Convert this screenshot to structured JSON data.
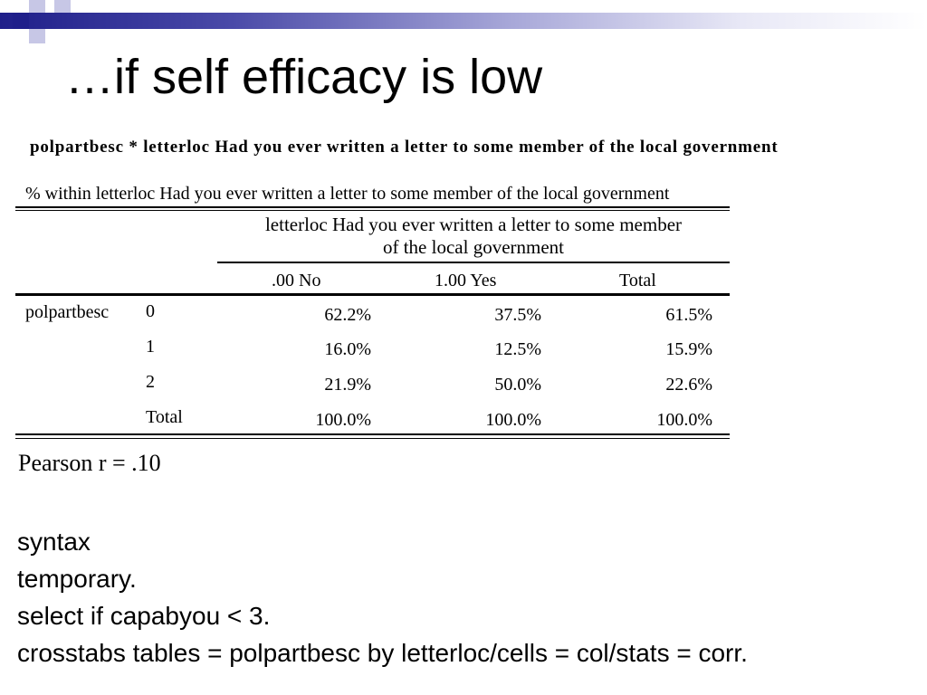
{
  "slide": {
    "title": "…if self efficacy is low"
  },
  "crosstab": {
    "heading": "polpartbesc * letterloc Had you ever written a letter to some member of the local government",
    "subtitle": "% within letterloc Had you ever written a letter to some member of the local government",
    "column_group_header": "letterloc Had you ever written a letter to some member of the local government",
    "column_group_header_line1": "letterloc Had you ever written a letter to some member",
    "column_group_header_line2": "of the local government",
    "columns": [
      ".00 No",
      "1.00 Yes",
      "Total"
    ],
    "row_variable": "polpartbesc",
    "rows": [
      {
        "label": "0",
        "values": [
          "62.2%",
          "37.5%",
          "61.5%"
        ]
      },
      {
        "label": "1",
        "values": [
          "16.0%",
          "12.5%",
          "15.9%"
        ]
      },
      {
        "label": "2",
        "values": [
          "21.9%",
          "50.0%",
          "22.6%"
        ]
      },
      {
        "label": "Total",
        "values": [
          "100.0%",
          "100.0%",
          "100.0%"
        ]
      }
    ]
  },
  "pearson": "Pearson r = .10",
  "syntax": {
    "lines": [
      "syntax",
      "temporary.",
      "select if capabyou < 3.",
      "crosstabs tables =  polpartbesc by letterloc/cells = col/stats = corr."
    ]
  },
  "colors": {
    "accent_dark": "#1f1f8a",
    "accent_light": "#a7a7d8"
  }
}
